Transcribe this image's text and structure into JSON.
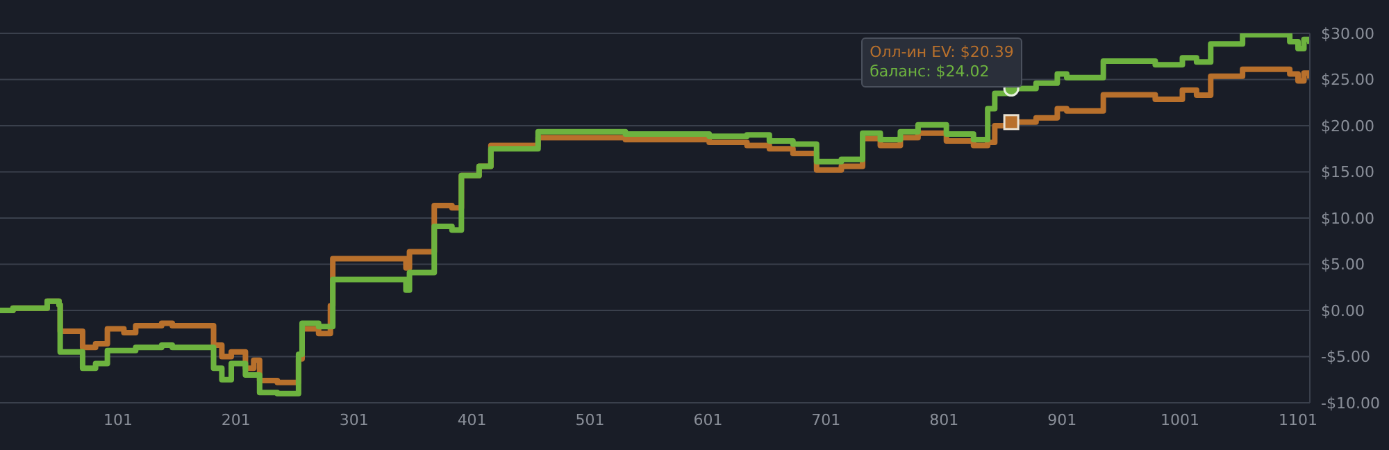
{
  "chart_data": {
    "type": "step",
    "x": [
      1,
      12,
      41,
      51,
      52,
      71,
      82,
      92,
      106,
      116,
      138,
      147,
      182,
      189,
      197,
      209,
      216,
      221,
      236,
      254,
      257,
      271,
      281,
      283,
      345,
      348,
      369,
      384,
      392,
      407,
      417,
      457,
      531,
      602,
      634,
      653,
      673,
      693,
      714,
      732,
      747,
      764,
      779,
      803,
      826,
      838,
      844,
      858,
      879,
      897,
      905,
      936,
      980,
      1003,
      1015,
      1027,
      1054,
      1094,
      1101,
      1106,
      1111
    ],
    "series": [
      {
        "color": "#b8702c",
        "values": [
          0,
          0.25,
          1,
          0.6,
          -2.25,
          -4,
          -3.6,
          -2,
          -2.4,
          -1.65,
          -1.4,
          -1.65,
          -3.75,
          -5,
          -4.5,
          -6.25,
          -5.4,
          -7.6,
          -7.8,
          -5.25,
          -2,
          -2.5,
          0.5,
          5.6,
          4.6,
          6.35,
          11.35,
          11.1,
          14.6,
          15.6,
          17.85,
          18.7,
          18.5,
          18.2,
          17.85,
          17.5,
          17,
          15.2,
          15.6,
          18.6,
          17.85,
          18.7,
          19.2,
          18.35,
          17.85,
          18.2,
          20,
          20.39,
          20.85,
          21.85,
          21.6,
          23.35,
          22.85,
          23.85,
          23.3,
          25.35,
          26.1,
          25.6,
          24.85,
          25.7,
          25.1
        ]
      },
      {
        "color": "#6db33f",
        "values": [
          0,
          0.25,
          1,
          0.6,
          -4.5,
          -6.25,
          -5.75,
          -4.35,
          -4.35,
          -4,
          -3.75,
          -4,
          -6.25,
          -7.5,
          -5.75,
          -7,
          -7,
          -8.9,
          -9,
          -4.75,
          -1.4,
          -1.75,
          -1.75,
          3.35,
          2.2,
          4.1,
          9.1,
          8.7,
          14.6,
          15.6,
          17.5,
          19.35,
          19.1,
          18.85,
          19,
          18.35,
          18,
          16.1,
          16.35,
          19.2,
          18.5,
          19.35,
          20.1,
          19.1,
          18.5,
          21.85,
          23.5,
          24.02,
          24.6,
          25.6,
          25.2,
          27,
          26.6,
          27.35,
          26.9,
          28.85,
          29.85,
          29.1,
          28.35,
          29.35,
          28.85
        ]
      }
    ],
    "xlim": [
      1,
      1111
    ],
    "xticks": [
      101,
      201,
      301,
      401,
      501,
      601,
      701,
      801,
      901,
      1001,
      1101
    ],
    "ylim": [
      -10,
      30
    ],
    "yticks": [
      {
        "value": -10,
        "label": "-$10.00"
      },
      {
        "value": -5,
        "label": "-$5.00"
      },
      {
        "value": 0,
        "label": "$0.00"
      },
      {
        "value": 5,
        "label": "$5.00"
      },
      {
        "value": 10,
        "label": "$10.00"
      },
      {
        "value": 15,
        "label": "$15.00"
      },
      {
        "value": 20,
        "label": "$20.00"
      },
      {
        "value": 25,
        "label": "$25.00"
      },
      {
        "value": 30,
        "label": "$30.00"
      }
    ],
    "grid": "y",
    "annotations": [
      "Олл-ин EV: $20.39",
      {
        "text": "баланс: $24.02",
        "x": 858,
        "y": 24.02
      }
    ]
  }
}
